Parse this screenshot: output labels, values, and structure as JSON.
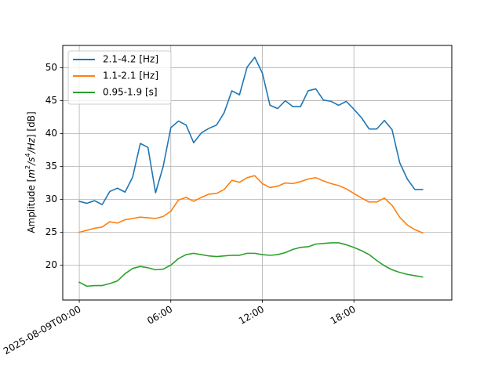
{
  "chart_data": {
    "type": "line",
    "title": "",
    "xlabel": "",
    "ylabel": "Amplitude [m²/s⁴/Hz] [dB]",
    "ylabel_parts": {
      "prefix": "Amplitude [",
      "m": "m",
      "two": "2",
      "slash1": "/",
      "s": "s",
      "four": "4",
      "slash2": "/",
      "hz": "Hz",
      "suffix": "] [dB]"
    },
    "grid": true,
    "legend_position": "top-left",
    "xlim": [
      "2025-08-08T22:55",
      "2025-08-10T00:25"
    ],
    "ylim": [
      14.7,
      53.4
    ],
    "x_ticks": [
      {
        "value": "2025-08-09T00:00",
        "label": "2025-08-09T00:00"
      },
      {
        "value": "2025-08-09T06:00",
        "label": "06:00"
      },
      {
        "value": "2025-08-09T12:00",
        "label": "12:00"
      },
      {
        "value": "2025-08-09T18:00",
        "label": "18:00"
      }
    ],
    "y_ticks": [
      20,
      25,
      30,
      35,
      40,
      45,
      50
    ],
    "x": [
      "2025-08-09T00:00",
      "2025-08-09T00:30",
      "2025-08-09T01:00",
      "2025-08-09T01:30",
      "2025-08-09T02:00",
      "2025-08-09T02:30",
      "2025-08-09T03:00",
      "2025-08-09T03:30",
      "2025-08-09T04:00",
      "2025-08-09T04:30",
      "2025-08-09T05:00",
      "2025-08-09T05:30",
      "2025-08-09T06:00",
      "2025-08-09T06:30",
      "2025-08-09T07:00",
      "2025-08-09T07:30",
      "2025-08-09T08:00",
      "2025-08-09T08:30",
      "2025-08-09T09:00",
      "2025-08-09T09:30",
      "2025-08-09T10:00",
      "2025-08-09T10:30",
      "2025-08-09T11:00",
      "2025-08-09T11:30",
      "2025-08-09T12:00",
      "2025-08-09T12:30",
      "2025-08-09T13:00",
      "2025-08-09T13:30",
      "2025-08-09T14:00",
      "2025-08-09T14:30",
      "2025-08-09T15:00",
      "2025-08-09T15:30",
      "2025-08-09T16:00",
      "2025-08-09T16:30",
      "2025-08-09T17:00",
      "2025-08-09T17:30",
      "2025-08-09T18:00",
      "2025-08-09T18:30",
      "2025-08-09T19:00",
      "2025-08-09T19:30",
      "2025-08-09T20:00",
      "2025-08-09T20:30",
      "2025-08-09T21:00",
      "2025-08-09T21:30",
      "2025-08-09T22:00",
      "2025-08-09T22:30"
    ],
    "series": [
      {
        "name": "2.1-4.2 [Hz]",
        "color": "#1f77b4",
        "values": [
          29.7,
          29.4,
          29.8,
          29.2,
          31.2,
          31.7,
          31.1,
          33.4,
          38.5,
          37.9,
          31.0,
          35.0,
          40.9,
          41.9,
          41.3,
          38.6,
          40.1,
          40.8,
          41.3,
          43.2,
          46.5,
          45.9,
          50.1,
          51.6,
          49.2,
          44.3,
          43.8,
          45.0,
          44.1,
          44.1,
          46.5,
          46.8,
          45.1,
          44.9,
          44.3,
          44.9,
          43.7,
          42.4,
          40.7,
          40.7,
          42.0,
          40.6,
          35.6,
          33.1,
          31.5,
          31.5
        ]
      },
      {
        "name": "1.1-2.1 [Hz]",
        "color": "#ff7f0e",
        "values": [
          25.0,
          25.3,
          25.6,
          25.8,
          26.6,
          26.4,
          26.9,
          27.1,
          27.3,
          27.2,
          27.1,
          27.4,
          28.2,
          29.9,
          30.3,
          29.7,
          30.3,
          30.8,
          30.9,
          31.5,
          32.9,
          32.6,
          33.3,
          33.6,
          32.4,
          31.8,
          32.0,
          32.5,
          32.4,
          32.7,
          33.1,
          33.3,
          32.8,
          32.4,
          32.1,
          31.6,
          30.9,
          30.2,
          29.6,
          29.6,
          30.2,
          29.1,
          27.3,
          26.1,
          25.4,
          24.9
        ]
      },
      {
        "name": "0.95-1.9 [s]",
        "color": "#2ca02c",
        "values": [
          17.4,
          16.8,
          16.9,
          16.9,
          17.2,
          17.6,
          18.7,
          19.5,
          19.8,
          19.6,
          19.3,
          19.4,
          20.0,
          21.0,
          21.6,
          21.8,
          21.6,
          21.4,
          21.3,
          21.4,
          21.5,
          21.5,
          21.8,
          21.8,
          21.6,
          21.5,
          21.6,
          21.9,
          22.4,
          22.7,
          22.8,
          23.2,
          23.3,
          23.4,
          23.4,
          23.1,
          22.7,
          22.2,
          21.6,
          20.7,
          19.9,
          19.3,
          18.9,
          18.6,
          18.4,
          18.2
        ]
      }
    ]
  }
}
